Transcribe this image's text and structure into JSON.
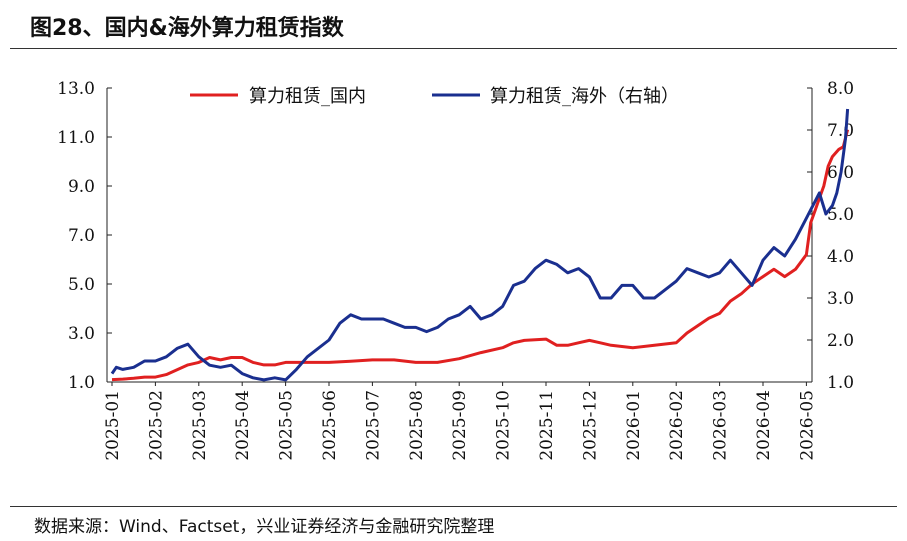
{
  "figure_title": "图28、国内&海外算力租赁指数",
  "source_note": "数据来源：Wind、Factset，兴业证券经济与金融研究院整理",
  "chart_data": {
    "type": "line",
    "title": "",
    "xlabel": "",
    "ylabel": "",
    "x_ticks": [
      "2025-01",
      "2025-02",
      "2025-03",
      "2025-04",
      "2025-05",
      "2025-06",
      "2025-07",
      "2025-08",
      "2025-09",
      "2025-10",
      "2025-11",
      "2025-12",
      "2026-01",
      "2026-02",
      "2026-03",
      "2026-04",
      "2026-05"
    ],
    "y_left": {
      "range": [
        1.0,
        13.0
      ],
      "ticks": [
        "1.0",
        "3.0",
        "5.0",
        "7.0",
        "9.0",
        "11.0",
        "13.0"
      ]
    },
    "y_right": {
      "range": [
        1.0,
        8.0
      ],
      "ticks": [
        "1.0",
        "2.0",
        "3.0",
        "4.0",
        "5.0",
        "6.0",
        "7.0",
        "8.0"
      ]
    },
    "grid": false,
    "legend_position": "top",
    "series": [
      {
        "name": "算力租赁_国内",
        "axis": "left",
        "color": "#e02020",
        "points": [
          [
            0,
            1.1
          ],
          [
            0.25,
            1.12
          ],
          [
            0.5,
            1.15
          ],
          [
            0.75,
            1.2
          ],
          [
            1,
            1.2
          ],
          [
            1.25,
            1.3
          ],
          [
            1.5,
            1.5
          ],
          [
            1.75,
            1.7
          ],
          [
            2,
            1.8
          ],
          [
            2.25,
            2.0
          ],
          [
            2.5,
            1.9
          ],
          [
            2.75,
            2.0
          ],
          [
            3,
            2.0
          ],
          [
            3.25,
            1.8
          ],
          [
            3.5,
            1.7
          ],
          [
            3.75,
            1.7
          ],
          [
            4,
            1.8
          ],
          [
            4.25,
            1.8
          ],
          [
            4.5,
            1.8
          ],
          [
            5,
            1.8
          ],
          [
            5.5,
            1.85
          ],
          [
            6,
            1.9
          ],
          [
            6.5,
            1.9
          ],
          [
            7,
            1.8
          ],
          [
            7.5,
            1.8
          ],
          [
            8,
            1.95
          ],
          [
            8.5,
            2.2
          ],
          [
            9,
            2.4
          ],
          [
            9.25,
            2.6
          ],
          [
            9.5,
            2.7
          ],
          [
            10,
            2.75
          ],
          [
            10.25,
            2.5
          ],
          [
            10.5,
            2.5
          ],
          [
            10.75,
            2.6
          ],
          [
            11,
            2.7
          ],
          [
            11.25,
            2.6
          ],
          [
            11.5,
            2.5
          ],
          [
            12,
            2.4
          ],
          [
            12.5,
            2.5
          ],
          [
            13,
            2.6
          ],
          [
            13.25,
            3.0
          ],
          [
            13.5,
            3.3
          ],
          [
            13.75,
            3.6
          ],
          [
            14,
            3.8
          ],
          [
            14.25,
            4.3
          ],
          [
            14.5,
            4.6
          ],
          [
            14.75,
            5.0
          ],
          [
            15,
            5.3
          ],
          [
            15.25,
            5.6
          ],
          [
            15.5,
            5.3
          ],
          [
            15.75,
            5.6
          ],
          [
            16,
            6.2
          ],
          [
            16.1,
            7.5
          ],
          [
            16.2,
            8.0
          ],
          [
            16.3,
            8.5
          ],
          [
            16.4,
            9.0
          ],
          [
            16.5,
            9.8
          ],
          [
            16.6,
            10.2
          ],
          [
            16.75,
            10.5
          ],
          [
            16.85,
            10.6
          ],
          [
            16.95,
            11.3
          ]
        ]
      },
      {
        "name": "算力租赁_海外（右轴）",
        "axis": "right",
        "color": "#1a2f8f",
        "points": [
          [
            0,
            1.2
          ],
          [
            0.1,
            1.35
          ],
          [
            0.25,
            1.3
          ],
          [
            0.5,
            1.35
          ],
          [
            0.75,
            1.5
          ],
          [
            1,
            1.5
          ],
          [
            1.25,
            1.6
          ],
          [
            1.5,
            1.8
          ],
          [
            1.75,
            1.9
          ],
          [
            2,
            1.6
          ],
          [
            2.25,
            1.4
          ],
          [
            2.5,
            1.35
          ],
          [
            2.75,
            1.4
          ],
          [
            3,
            1.2
          ],
          [
            3.25,
            1.1
          ],
          [
            3.5,
            1.05
          ],
          [
            3.75,
            1.1
          ],
          [
            4,
            1.05
          ],
          [
            4.25,
            1.3
          ],
          [
            4.5,
            1.6
          ],
          [
            5,
            2.0
          ],
          [
            5.25,
            2.4
          ],
          [
            5.5,
            2.6
          ],
          [
            5.75,
            2.5
          ],
          [
            6,
            2.5
          ],
          [
            6.25,
            2.5
          ],
          [
            6.5,
            2.4
          ],
          [
            6.75,
            2.3
          ],
          [
            7,
            2.3
          ],
          [
            7.25,
            2.2
          ],
          [
            7.5,
            2.3
          ],
          [
            7.75,
            2.5
          ],
          [
            8,
            2.6
          ],
          [
            8.25,
            2.8
          ],
          [
            8.5,
            2.5
          ],
          [
            8.75,
            2.6
          ],
          [
            9,
            2.8
          ],
          [
            9.25,
            3.3
          ],
          [
            9.5,
            3.4
          ],
          [
            9.75,
            3.7
          ],
          [
            10,
            3.9
          ],
          [
            10.25,
            3.8
          ],
          [
            10.5,
            3.6
          ],
          [
            10.75,
            3.7
          ],
          [
            11,
            3.5
          ],
          [
            11.25,
            3.0
          ],
          [
            11.5,
            3.0
          ],
          [
            11.75,
            3.3
          ],
          [
            12,
            3.3
          ],
          [
            12.25,
            3.0
          ],
          [
            12.5,
            3.0
          ],
          [
            12.75,
            3.2
          ],
          [
            13,
            3.4
          ],
          [
            13.25,
            3.7
          ],
          [
            13.5,
            3.6
          ],
          [
            13.75,
            3.5
          ],
          [
            14,
            3.6
          ],
          [
            14.25,
            3.9
          ],
          [
            14.5,
            3.6
          ],
          [
            14.75,
            3.3
          ],
          [
            15,
            3.9
          ],
          [
            15.25,
            4.2
          ],
          [
            15.5,
            4.0
          ],
          [
            15.75,
            4.4
          ],
          [
            16,
            4.9
          ],
          [
            16.15,
            5.2
          ],
          [
            16.3,
            5.5
          ],
          [
            16.45,
            5.0
          ],
          [
            16.6,
            5.2
          ],
          [
            16.7,
            5.5
          ],
          [
            16.8,
            6.0
          ],
          [
            16.9,
            6.8
          ],
          [
            16.95,
            7.5
          ]
        ]
      }
    ]
  }
}
